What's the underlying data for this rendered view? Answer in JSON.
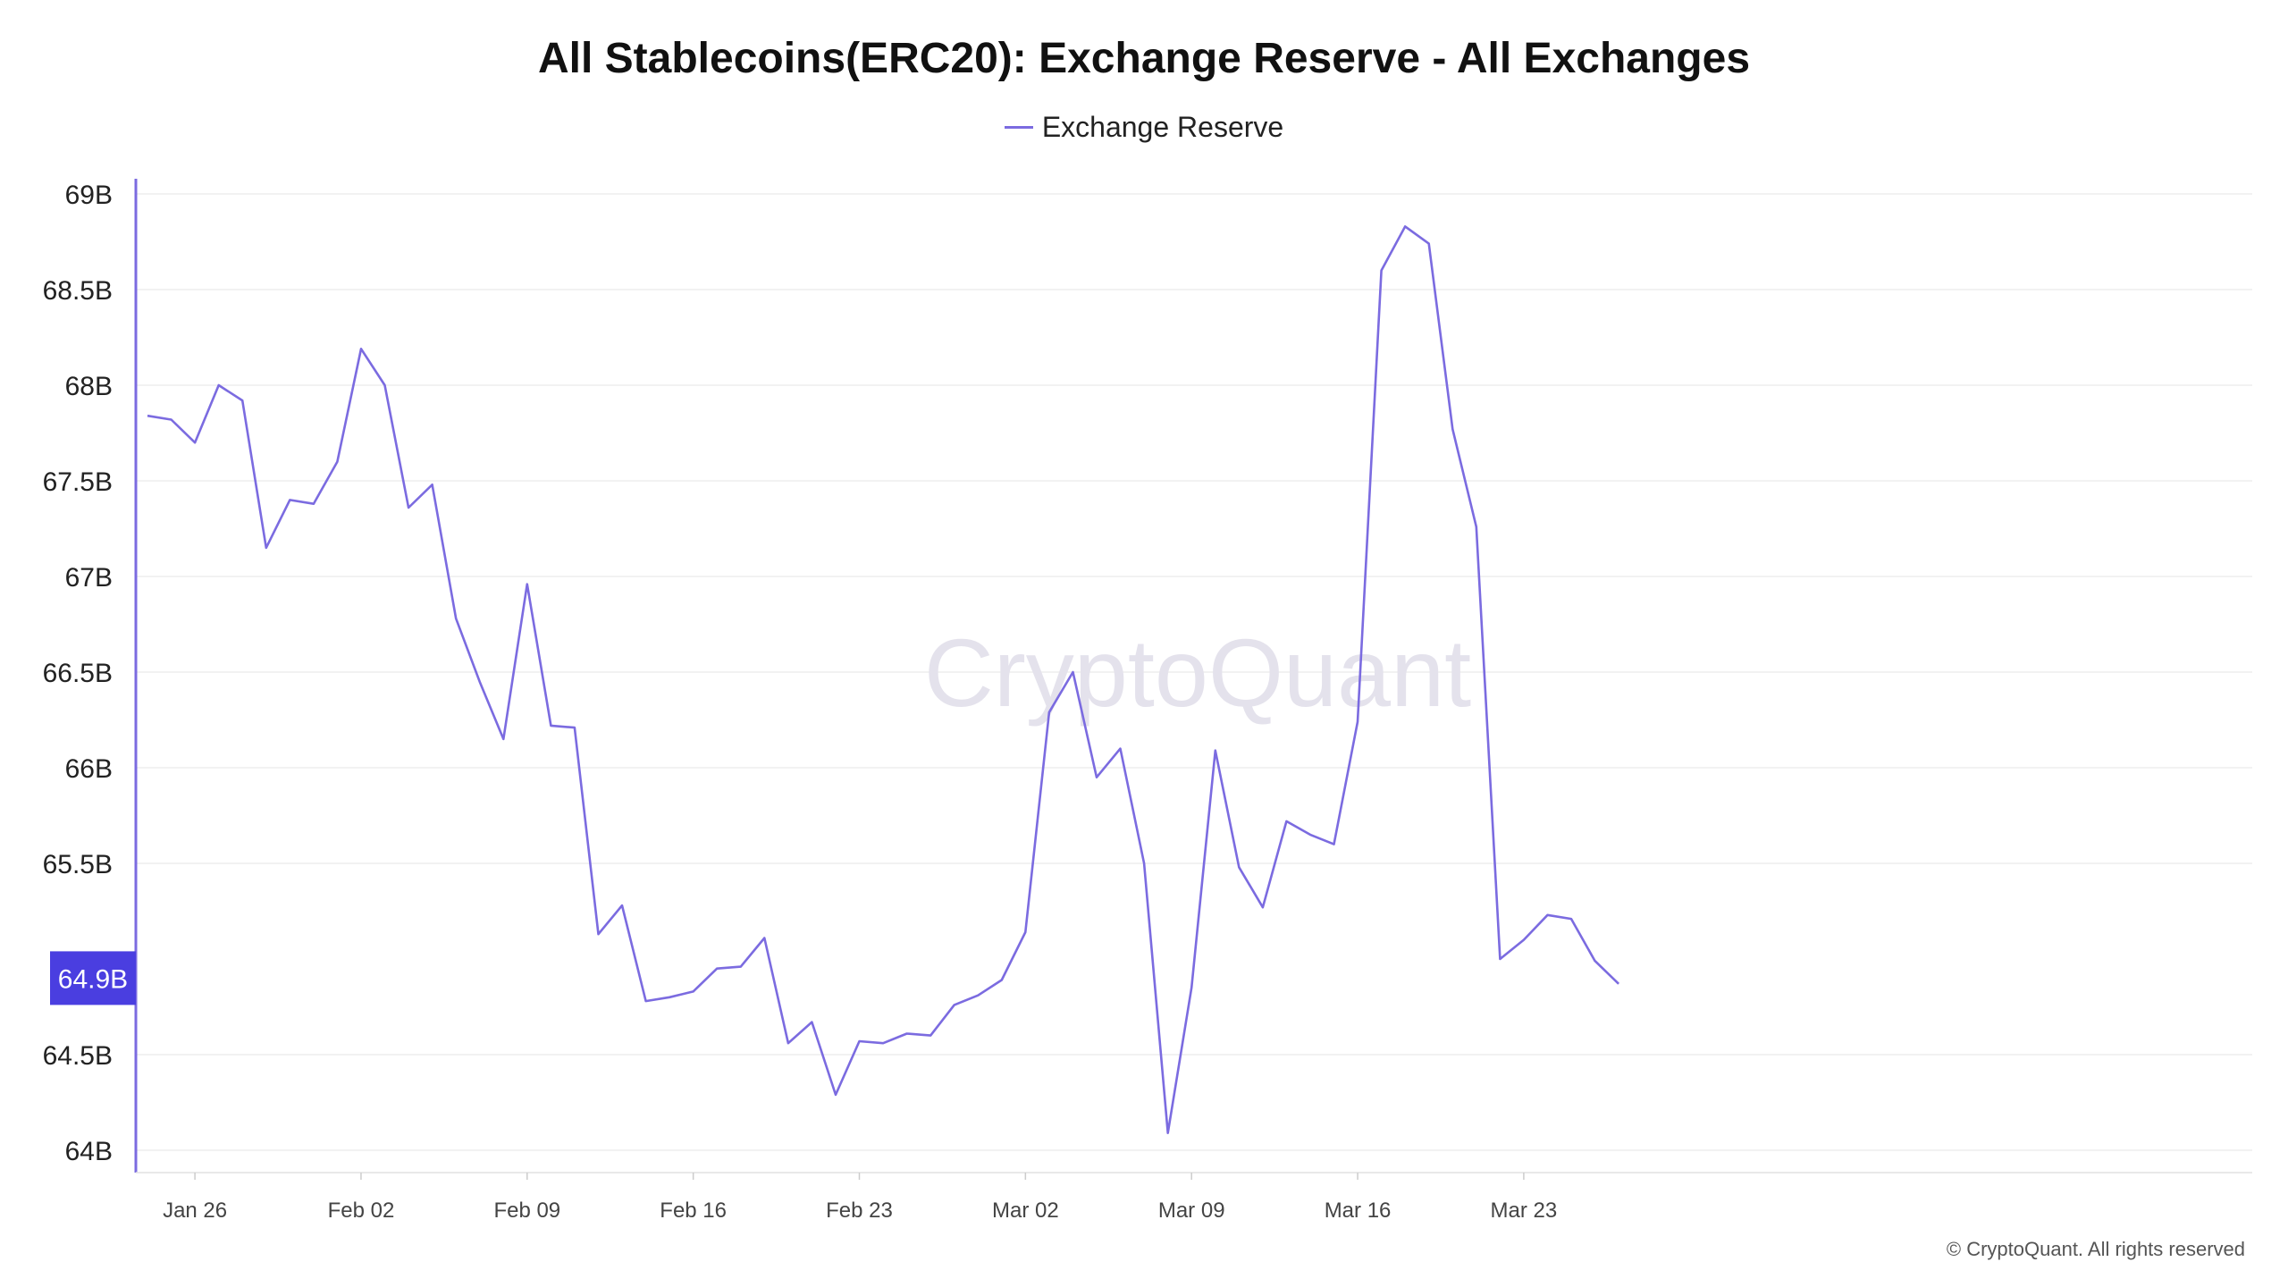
{
  "chart_data": {
    "type": "line",
    "title": "All Stablecoins(ERC20): Exchange Reserve - All Exchanges",
    "legend": [
      "Exchange Reserve"
    ],
    "legend_position": "top-center",
    "series": [
      {
        "name": "Exchange Reserve",
        "color": "#7b6be0",
        "values": [
          67.84,
          67.82,
          67.7,
          68.0,
          67.92,
          67.15,
          67.4,
          67.38,
          67.6,
          68.19,
          68.0,
          67.36,
          67.48,
          66.78,
          66.45,
          66.15,
          66.96,
          66.22,
          66.21,
          65.13,
          65.28,
          64.78,
          64.8,
          64.83,
          64.95,
          64.96,
          65.11,
          64.56,
          64.67,
          64.29,
          64.57,
          64.56,
          64.61,
          64.6,
          64.76,
          64.81,
          64.89,
          65.14,
          66.29,
          66.5,
          65.95,
          66.1,
          65.5,
          64.09,
          64.85,
          66.09,
          65.48,
          65.27,
          65.72,
          65.65,
          65.6,
          66.24,
          68.6,
          68.83,
          68.74,
          67.77,
          67.26,
          65.0,
          65.1,
          65.23,
          65.21,
          64.99,
          64.87
        ]
      }
    ],
    "y_tick_labels": [
      "69B",
      "68.5B",
      "68B",
      "67.5B",
      "67B",
      "66.5B",
      "66B",
      "65.5B",
      "64.5B",
      "64B"
    ],
    "y_tick_values": [
      69,
      68.5,
      68,
      67.5,
      67,
      66.5,
      66,
      65.5,
      64.5,
      64
    ],
    "x_tick_labels": [
      "Jan 26",
      "Feb 02",
      "Feb 09",
      "Feb 16",
      "Feb 23",
      "Mar 02",
      "Mar 09",
      "Mar 16",
      "Mar 23"
    ],
    "x_tick_indices": [
      2,
      9,
      16,
      23,
      30,
      37,
      44,
      51,
      58
    ],
    "ylim": [
      64,
      69
    ],
    "current_value_label": "64.9B",
    "current_value": 64.9,
    "grid": true,
    "xlabel": "",
    "ylabel": ""
  },
  "watermark": "CryptoQuant",
  "footer": "© CryptoQuant. All rights reserved",
  "colors": {
    "line": "#7b6be0",
    "axis": "#7b6be0",
    "badge": "#4a3ee0",
    "grid": "#eeeeee",
    "watermark": "#e4e2ec"
  }
}
